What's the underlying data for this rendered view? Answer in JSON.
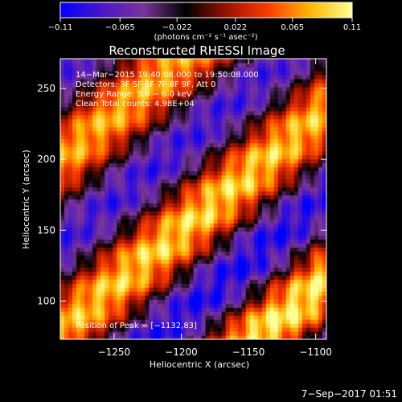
{
  "chart_data": {
    "type": "heatmap",
    "title": "Reconstructed RHESSI Image",
    "xlabel": "Heliocentric X (arcsec)",
    "ylabel": "Heliocentric Y (arcsec)",
    "xlim": [
      -1290,
      -1092
    ],
    "ylim": [
      73,
      271
    ],
    "x_ticks": [
      -1250,
      -1200,
      -1150,
      -1100
    ],
    "x_tick_labels": [
      "−1250",
      "−1200",
      "−1150",
      "−1100"
    ],
    "y_ticks": [
      100,
      150,
      200,
      250
    ],
    "y_tick_labels": [
      "100",
      "150",
      "200",
      "250"
    ],
    "colorbar": {
      "range": [
        -0.11,
        0.11
      ],
      "ticks": [
        -0.11,
        -0.065,
        -0.022,
        0.022,
        0.065,
        0.11
      ],
      "tick_labels": [
        "−0.11",
        "−0.065",
        "−0.022",
        "0.022",
        "0.065",
        "0.11"
      ],
      "units_label": "(photons cm⁻² s⁻¹ asec⁻²)",
      "colormap": [
        "#0000ff",
        "#4a16c8",
        "#7a3599",
        "#000000",
        "#9c1200",
        "#ff3c00",
        "#ffb800",
        "#ffff96"
      ]
    },
    "annotations": [
      "14−Mar−2015 19:40:08.000 to 19:50:08.000",
      "Detectors: 3F 5F 6F 7F 8F 9F, Att 0",
      "Energy Range: 3.0 − 6.0 keV",
      "Clean     Total counts: 4.98E+04",
      "Position of Peak = [−1132,83]"
    ],
    "peak": {
      "x": -1132,
      "y": 83
    },
    "pattern": {
      "description_values": "diagonal fringe pattern, alternating positive (red-yellow) and negative (blue-purple) bands",
      "fringe_period_arcsec": 95,
      "fringe_angle_deg": 38
    },
    "footer": "7−Sep−2017 01:51"
  }
}
